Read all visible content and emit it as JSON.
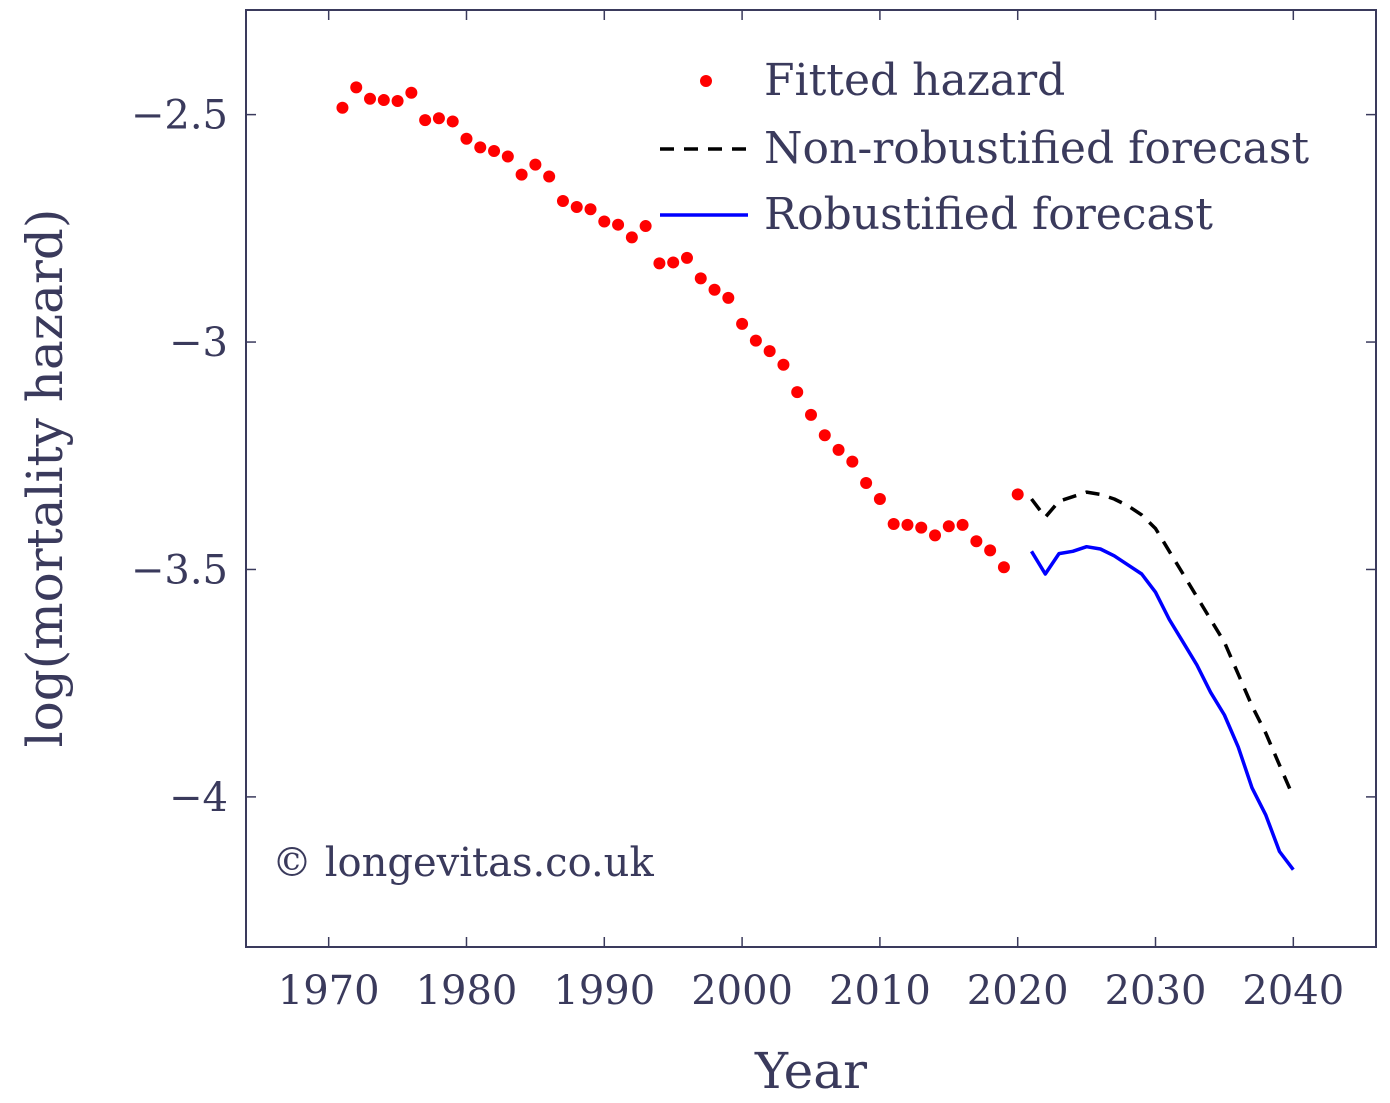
{
  "chart_data": {
    "type": "line",
    "title": "",
    "xlabel": "Year",
    "ylabel": "log(mortality hazard)",
    "xlim": [
      1964,
      2046
    ],
    "ylim": [
      -4.33,
      -2.27
    ],
    "x_ticks": [
      1970,
      1980,
      1990,
      2000,
      2010,
      2020,
      2030,
      2040
    ],
    "x_tick_labels": [
      "1970",
      "1980",
      "1990",
      "2000",
      "2010",
      "2020",
      "2030",
      "2040"
    ],
    "y_ticks": [
      -2.5,
      -3,
      -3.5,
      -4
    ],
    "y_tick_labels": [
      "−2.5",
      "−3",
      "−3.5",
      "−4"
    ],
    "grid": false,
    "legend_position": "top-right",
    "series": [
      {
        "name": "Fitted hazard",
        "style": "markers",
        "color": "#ff0000",
        "x": [
          1971,
          1972,
          1973,
          1974,
          1975,
          1976,
          1977,
          1978,
          1979,
          1980,
          1981,
          1982,
          1983,
          1984,
          1985,
          1986,
          1987,
          1988,
          1989,
          1990,
          1991,
          1992,
          1993,
          1994,
          1995,
          1996,
          1997,
          1998,
          1999,
          2000,
          2001,
          2002,
          2003,
          2004,
          2005,
          2006,
          2007,
          2008,
          2009,
          2010,
          2011,
          2012,
          2013,
          2014,
          2015,
          2016,
          2017,
          2018,
          2019,
          2020
        ],
        "y": [
          -2.485,
          -2.44,
          -2.465,
          -2.468,
          -2.47,
          -2.452,
          -2.512,
          -2.508,
          -2.515,
          -2.553,
          -2.572,
          -2.58,
          -2.592,
          -2.632,
          -2.61,
          -2.636,
          -2.69,
          -2.703,
          -2.708,
          -2.735,
          -2.742,
          -2.77,
          -2.745,
          -2.827,
          -2.825,
          -2.815,
          -2.86,
          -2.885,
          -2.903,
          -2.96,
          -2.997,
          -3.02,
          -3.05,
          -3.11,
          -3.16,
          -3.205,
          -3.237,
          -3.263,
          -3.31,
          -3.345,
          -3.4,
          -3.402,
          -3.408,
          -3.425,
          -3.405,
          -3.402,
          -3.438,
          -3.458,
          -3.495,
          -3.335
        ]
      },
      {
        "name": "Non-robustified forecast",
        "style": "dashed",
        "color": "#000000",
        "x": [
          2021,
          2022,
          2023,
          2024,
          2025,
          2026,
          2027,
          2028,
          2029,
          2030,
          2031,
          2032,
          2033,
          2034,
          2035,
          2036,
          2037,
          2038,
          2039,
          2040
        ],
        "y": [
          -3.345,
          -3.385,
          -3.35,
          -3.34,
          -3.33,
          -3.335,
          -3.345,
          -3.36,
          -3.38,
          -3.41,
          -3.46,
          -3.51,
          -3.56,
          -3.61,
          -3.66,
          -3.73,
          -3.8,
          -3.86,
          -3.93,
          -4.0
        ]
      },
      {
        "name": "Robustified forecast",
        "style": "solid",
        "color": "#0000ff",
        "x": [
          2021,
          2022,
          2023,
          2024,
          2025,
          2026,
          2027,
          2028,
          2029,
          2030,
          2031,
          2032,
          2033,
          2034,
          2035,
          2036,
          2037,
          2038,
          2039,
          2040
        ],
        "y": [
          -3.46,
          -3.51,
          -3.465,
          -3.46,
          -3.45,
          -3.455,
          -3.47,
          -3.49,
          -3.51,
          -3.55,
          -3.61,
          -3.66,
          -3.71,
          -3.77,
          -3.82,
          -3.89,
          -3.98,
          -4.04,
          -4.12,
          -4.16
        ]
      }
    ],
    "annotations": [
      {
        "text": "© longevitas.co.uk",
        "position": "bottom-left"
      }
    ]
  },
  "colors": {
    "axis": "#3a3a5c",
    "text": "#3a3a5c",
    "fitted": "#ff0000",
    "non_robust": "#000000",
    "robust": "#0000ff"
  }
}
